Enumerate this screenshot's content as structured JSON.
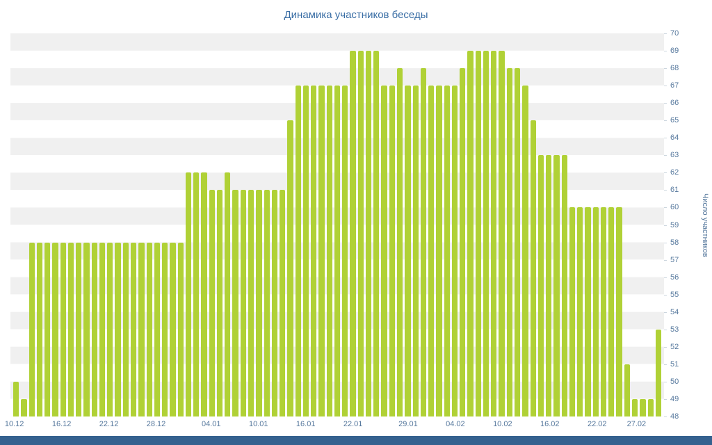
{
  "chart": {
    "title": "Динамика участников беседы",
    "y_axis_title": "Число участников"
  },
  "chart_data": {
    "type": "bar",
    "title": "Динамика участников беседы",
    "xlabel": "",
    "ylabel": "Число участников",
    "ylim": [
      48,
      70
    ],
    "ytick_step": 1,
    "grid": "striped-horizontal-bands",
    "legend": "none",
    "bar_color": "#b0d136",
    "stripe_color": "#f0f0f0",
    "axis_label_color": "#56789d",
    "title_color": "#3a6ea5",
    "footer_color": "#35618f",
    "x_tick_labels": [
      {
        "label": "10.12",
        "index": 0
      },
      {
        "label": "16.12",
        "index": 6
      },
      {
        "label": "22.12",
        "index": 12
      },
      {
        "label": "28.12",
        "index": 18
      },
      {
        "label": "04.01",
        "index": 25
      },
      {
        "label": "10.01",
        "index": 31
      },
      {
        "label": "16.01",
        "index": 37
      },
      {
        "label": "22.01",
        "index": 43
      },
      {
        "label": "29.01",
        "index": 50
      },
      {
        "label": "04.02",
        "index": 56
      },
      {
        "label": "10.02",
        "index": 62
      },
      {
        "label": "16.02",
        "index": 68
      },
      {
        "label": "22.02",
        "index": 74
      },
      {
        "label": "27.02",
        "index": 79
      }
    ],
    "values": [
      50,
      49,
      58,
      58,
      58,
      58,
      58,
      58,
      58,
      58,
      58,
      58,
      58,
      58,
      58,
      58,
      58,
      58,
      58,
      58,
      58,
      58,
      62,
      62,
      62,
      61,
      61,
      62,
      61,
      61,
      61,
      61,
      61,
      61,
      61,
      65,
      67,
      67,
      67,
      67,
      67,
      67,
      67,
      69,
      69,
      69,
      69,
      67,
      67,
      68,
      67,
      67,
      68,
      67,
      67,
      67,
      67,
      68,
      69,
      69,
      69,
      69,
      69,
      68,
      68,
      67,
      65,
      63,
      63,
      63,
      63,
      60,
      60,
      60,
      60,
      60,
      60,
      60,
      51,
      49,
      49,
      49,
      53
    ]
  }
}
